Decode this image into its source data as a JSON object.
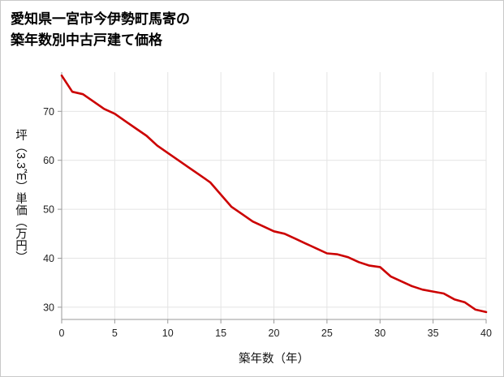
{
  "page": {
    "title_line1": "愛知県一宮市今伊勢町馬寄の",
    "title_line2": "築年数別中古戸建て価格"
  },
  "chart_data": {
    "type": "line",
    "title": "愛知県一宮市今伊勢町馬寄の築年数別中古戸建て価格",
    "xlabel": "築年数（年）",
    "ylabel": "坪（3.3㎡）単価（万円）",
    "x": [
      0,
      1,
      2,
      3,
      4,
      5,
      6,
      7,
      8,
      9,
      10,
      11,
      12,
      13,
      14,
      15,
      16,
      17,
      18,
      19,
      20,
      21,
      22,
      23,
      24,
      25,
      26,
      27,
      28,
      29,
      30,
      31,
      32,
      33,
      34,
      35,
      36,
      37,
      38,
      39,
      40
    ],
    "values": [
      77.3,
      74,
      73.5,
      72,
      70.5,
      69.5,
      68,
      66.5,
      65,
      63,
      61.5,
      60,
      58.5,
      57,
      55.5,
      53,
      50.5,
      49,
      47.5,
      46.5,
      45.5,
      45,
      44,
      43,
      42,
      41,
      40.8,
      40.2,
      39.2,
      38.5,
      38.2,
      36.3,
      35.3,
      34.3,
      33.6,
      33.2,
      32.8,
      31.6,
      31,
      29.5,
      29
    ],
    "x_ticks": [
      0,
      5,
      10,
      15,
      20,
      25,
      30,
      35,
      40
    ],
    "y_ticks": [
      30,
      40,
      50,
      60,
      70
    ],
    "xlim": [
      0,
      40
    ],
    "ylim": [
      27.5,
      78
    ],
    "grid": true,
    "legend_position": "none",
    "line_color": "#cc0000",
    "grid_color": "#e4e4e4",
    "axis_color": "#999999",
    "tick_label_color": "#222222"
  }
}
